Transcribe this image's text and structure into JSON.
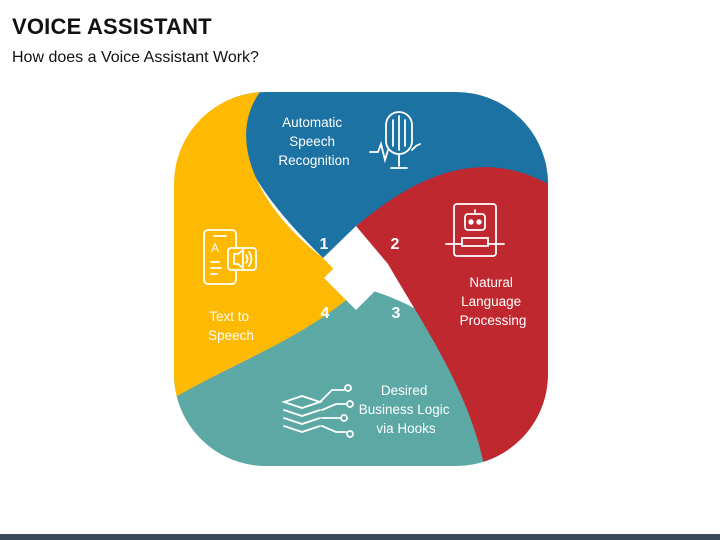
{
  "header": {
    "title": "VOICE ASSISTANT",
    "subtitle": "How does a Voice Assistant Work?"
  },
  "colors": {
    "blue": "#1C72A2",
    "red": "#C0282F",
    "teal": "#5BA8A5",
    "yellow": "#FEB903"
  },
  "steps": [
    {
      "number": "1",
      "label_lines": [
        "Automatic",
        "Speech",
        "Recognition"
      ],
      "icon": "microphone-fingerprint-icon"
    },
    {
      "number": "2",
      "label_lines": [
        "Natural",
        "Language",
        "Processing"
      ],
      "icon": "robot-tablet-icon"
    },
    {
      "number": "3",
      "label_lines": [
        "Desired",
        "Business Logic",
        "via Hooks"
      ],
      "icon": "layers-network-icon"
    },
    {
      "number": "4",
      "label_lines": [
        "Text to",
        "Speech"
      ],
      "icon": "phone-speaker-icon"
    }
  ]
}
